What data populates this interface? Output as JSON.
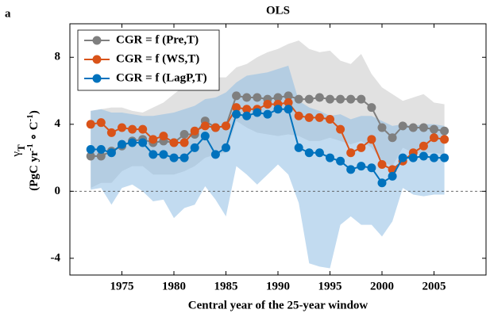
{
  "chart_data": {
    "type": "line",
    "panel": "a",
    "title": "OLS",
    "xlabel": "Central year of the 25-year window",
    "ylabel_symbol": "γ",
    "ylabel_subscript": "T",
    "ylabel_unit": [
      "(PgC yr",
      "-1",
      " ∘ C",
      "-1",
      ")"
    ],
    "x": [
      1972,
      1973,
      1974,
      1975,
      1976,
      1977,
      1978,
      1979,
      1980,
      1981,
      1982,
      1983,
      1984,
      1985,
      1986,
      1987,
      1988,
      1989,
      1990,
      1991,
      1992,
      1993,
      1994,
      1995,
      1996,
      1997,
      1998,
      1999,
      2000,
      2001,
      2002,
      2003,
      2004,
      2005,
      2006
    ],
    "xlim": [
      1970,
      2010
    ],
    "xticks": [
      1975,
      1980,
      1985,
      1990,
      1995,
      2000,
      2005
    ],
    "ylim": [
      -5,
      10
    ],
    "yticks": [
      -4,
      0,
      4,
      8
    ],
    "zero_line": true,
    "legend": "upper left",
    "bands": [
      {
        "color": "#c8c8c8",
        "upper": [
          4.8,
          4.9,
          5.0,
          5.0,
          4.8,
          4.7,
          5.0,
          5.3,
          5.8,
          6.3,
          6.4,
          6.6,
          6.8,
          6.8,
          7.4,
          7.6,
          8.0,
          8.3,
          8.5,
          8.8,
          9.0,
          8.5,
          8.3,
          8.4,
          7.8,
          7.6,
          8.2,
          7.0,
          6.2,
          5.8,
          5.4,
          5.6,
          5.8,
          5.3,
          5.2
        ],
        "lower": [
          0.2,
          0.5,
          0.5,
          1.2,
          1.5,
          1.5,
          1.0,
          1.0,
          1.0,
          1.2,
          1.5,
          2.0,
          2.2,
          2.3,
          4.2,
          3.8,
          3.5,
          3.4,
          3.3,
          3.4,
          3.3,
          3.0,
          3.0,
          3.2,
          3.0,
          2.8,
          3.0,
          2.6,
          1.8,
          1.5,
          2.6,
          2.3,
          2.3,
          2.3,
          2.2
        ]
      },
      {
        "color": "#8fbde3",
        "upper": [
          4.8,
          4.9,
          4.7,
          4.7,
          4.6,
          4.5,
          4.5,
          4.6,
          4.7,
          4.9,
          5.1,
          5.5,
          5.6,
          5.9,
          6.5,
          6.9,
          7.0,
          7.1,
          7.3,
          7.5,
          5.4,
          5.0,
          4.8,
          4.5,
          4.6,
          4.3,
          4.5,
          4.5,
          4.2,
          3.9,
          4.0,
          3.9,
          4.0,
          4.0,
          3.9
        ],
        "lower": [
          0.1,
          0.2,
          -0.8,
          0.2,
          0.4,
          0.0,
          -0.6,
          -0.5,
          -1.6,
          -1.0,
          -0.8,
          0.3,
          -0.5,
          -1.5,
          1.5,
          1.0,
          0.4,
          1.0,
          1.6,
          1.0,
          -0.7,
          -4.3,
          -4.5,
          -4.6,
          -2.0,
          -1.5,
          -2.0,
          -2.0,
          -2.7,
          -1.8,
          0.2,
          -0.2,
          -0.3,
          -0.2,
          -0.2
        ]
      }
    ],
    "series": [
      {
        "name": "CGR = f (Pre,T)",
        "color": "#7f7f7f",
        "values": [
          2.1,
          2.1,
          2.4,
          2.7,
          3.0,
          3.1,
          2.9,
          3.0,
          2.9,
          3.4,
          3.4,
          4.2,
          3.8,
          3.9,
          5.7,
          5.6,
          5.6,
          5.5,
          5.6,
          5.7,
          5.5,
          5.5,
          5.6,
          5.5,
          5.5,
          5.5,
          5.5,
          5.0,
          3.8,
          3.2,
          3.9,
          3.8,
          3.8,
          3.7,
          3.6
        ]
      },
      {
        "name": "CGR = f (WS,T)",
        "color": "#d95319",
        "values": [
          4.0,
          4.1,
          3.5,
          3.8,
          3.7,
          3.7,
          3.1,
          3.3,
          2.9,
          2.9,
          3.6,
          3.9,
          3.8,
          3.9,
          5.0,
          4.9,
          4.9,
          5.2,
          5.2,
          5.3,
          4.5,
          4.4,
          4.4,
          4.3,
          3.7,
          2.3,
          2.6,
          3.1,
          1.6,
          1.3,
          1.8,
          2.3,
          2.7,
          3.2,
          3.1
        ]
      },
      {
        "name": "CGR = f (LagP,T)",
        "color": "#0072bd",
        "values": [
          2.5,
          2.5,
          2.3,
          2.8,
          2.9,
          2.9,
          2.2,
          2.2,
          2.0,
          2.0,
          2.6,
          3.3,
          2.2,
          2.6,
          4.6,
          4.5,
          4.7,
          4.6,
          4.9,
          4.9,
          2.6,
          2.3,
          2.3,
          2.0,
          1.8,
          1.3,
          1.5,
          1.4,
          0.5,
          0.9,
          2.0,
          2.0,
          2.1,
          2.0,
          2.0
        ]
      }
    ]
  }
}
